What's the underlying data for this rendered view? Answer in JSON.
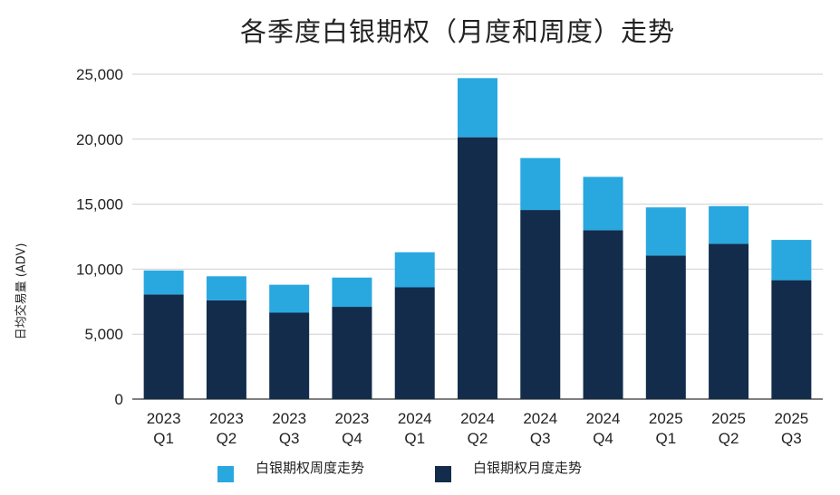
{
  "chart_data": {
    "type": "bar",
    "stacked": true,
    "title": "各季度白银期权（月度和周度）走势",
    "ylabel": "日均交易量 (ADV)",
    "xlabel": "",
    "ylim": [
      0,
      25000
    ],
    "yticks": [
      "0",
      "5,000",
      "10,000",
      "15,000",
      "20,000",
      "25,000"
    ],
    "categories": [
      [
        "2023",
        "Q1"
      ],
      [
        "2023",
        "Q2"
      ],
      [
        "2023",
        "Q3"
      ],
      [
        "2023",
        "Q4"
      ],
      [
        "2024",
        "Q1"
      ],
      [
        "2024",
        "Q2"
      ],
      [
        "2024",
        "Q3"
      ],
      [
        "2024",
        "Q4"
      ],
      [
        "2025",
        "Q1"
      ],
      [
        "2025",
        "Q2"
      ],
      [
        "2025",
        "Q3"
      ]
    ],
    "series": [
      {
        "name": "白银期权月度走势",
        "color": "#132c4c",
        "values": [
          8050,
          7600,
          6650,
          7100,
          8600,
          20150,
          14550,
          13000,
          11050,
          11950,
          9150
        ]
      },
      {
        "name": "白银期权周度走势",
        "color": "#29a8e0",
        "values": [
          1850,
          1850,
          2150,
          2250,
          2700,
          4550,
          4000,
          4100,
          3700,
          2900,
          3100
        ]
      }
    ],
    "legend": [
      {
        "name": "白银期权周度走势",
        "color": "#29a8e0"
      },
      {
        "name": "白银期权月度走势",
        "color": "#132c4c"
      }
    ],
    "grid": true,
    "legend_position": "bottom"
  }
}
